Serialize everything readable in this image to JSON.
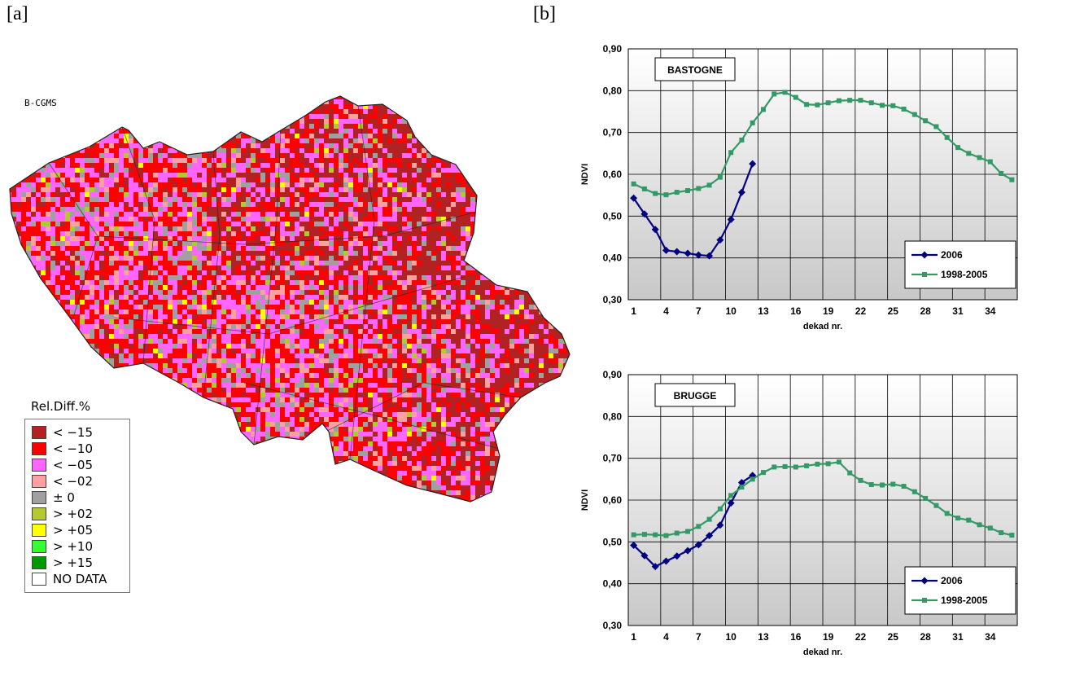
{
  "panel_a_label": "[a]",
  "panel_b_label": "[b]",
  "map": {
    "tag": "B-CGMS",
    "legend_title": "Rel.Diff.%",
    "legend": [
      {
        "label": "< −15",
        "color": "#b22222"
      },
      {
        "label": "< −10",
        "color": "#ff0000"
      },
      {
        "label": "< −05",
        "color": "#ff66ff"
      },
      {
        "label": "< −02",
        "color": "#ffa0a0"
      },
      {
        "label": "± 0",
        "color": "#a0a0a0"
      },
      {
        "label": "> +02",
        "color": "#b4c832"
      },
      {
        "label": "> +05",
        "color": "#ffff00"
      },
      {
        "label": "> +10",
        "color": "#33ff33"
      },
      {
        "label": "> +15",
        "color": "#009900"
      },
      {
        "label": "NO DATA",
        "color": "#ffffff"
      }
    ]
  },
  "chart_data": [
    {
      "type": "line",
      "title": "BASTOGNE",
      "xlabel": "dekad nr.",
      "ylabel": "NDVI",
      "ylim": [
        0.3,
        0.9
      ],
      "yticks": [
        "0,30",
        "0,40",
        "0,50",
        "0,60",
        "0,70",
        "0,80",
        "0,90"
      ],
      "xticks": [
        "1",
        "4",
        "7",
        "10",
        "13",
        "16",
        "19",
        "22",
        "25",
        "28",
        "31",
        "34"
      ],
      "xlim": [
        1,
        36
      ],
      "grid": true,
      "legend_position": "bottom-right",
      "series": [
        {
          "name": "2006",
          "color": "#000080",
          "marker": "diamond",
          "x": [
            1,
            2,
            3,
            4,
            5,
            6,
            7,
            8,
            9,
            10,
            11,
            12
          ],
          "y": [
            0.543,
            0.505,
            0.468,
            0.418,
            0.415,
            0.411,
            0.407,
            0.405,
            0.443,
            0.492,
            0.557,
            0.625
          ]
        },
        {
          "name": "1998-2005",
          "color": "#339966",
          "marker": "square",
          "x": [
            1,
            2,
            3,
            4,
            5,
            6,
            7,
            8,
            9,
            10,
            11,
            12,
            13,
            14,
            15,
            16,
            17,
            18,
            19,
            20,
            21,
            22,
            23,
            24,
            25,
            26,
            27,
            28,
            29,
            30,
            31,
            32,
            33,
            34,
            35,
            36
          ],
          "y": [
            0.577,
            0.565,
            0.554,
            0.551,
            0.557,
            0.561,
            0.566,
            0.574,
            0.593,
            0.652,
            0.682,
            0.723,
            0.755,
            0.792,
            0.796,
            0.784,
            0.767,
            0.766,
            0.771,
            0.776,
            0.777,
            0.777,
            0.771,
            0.765,
            0.764,
            0.756,
            0.743,
            0.728,
            0.714,
            0.688,
            0.664,
            0.65,
            0.64,
            0.63,
            0.602,
            0.587
          ]
        }
      ]
    },
    {
      "type": "line",
      "title": "BRUGGE",
      "xlabel": "dekad nr.",
      "ylabel": "NDVI",
      "ylim": [
        0.3,
        0.9
      ],
      "yticks": [
        "0,30",
        "0,40",
        "0,50",
        "0,60",
        "0,70",
        "0,80",
        "0,90"
      ],
      "xticks": [
        "1",
        "4",
        "7",
        "10",
        "13",
        "16",
        "19",
        "22",
        "25",
        "28",
        "31",
        "34"
      ],
      "xlim": [
        1,
        36
      ],
      "grid": true,
      "legend_position": "bottom-right",
      "series": [
        {
          "name": "2006",
          "color": "#000080",
          "marker": "diamond",
          "x": [
            1,
            2,
            3,
            4,
            5,
            6,
            7,
            8,
            9,
            10,
            11,
            12
          ],
          "y": [
            0.492,
            0.467,
            0.441,
            0.454,
            0.466,
            0.479,
            0.493,
            0.515,
            0.54,
            0.593,
            0.642,
            0.659
          ]
        },
        {
          "name": "1998-2005",
          "color": "#339966",
          "marker": "square",
          "x": [
            1,
            2,
            3,
            4,
            5,
            6,
            7,
            8,
            9,
            10,
            11,
            12,
            13,
            14,
            15,
            16,
            17,
            18,
            19,
            20,
            21,
            22,
            23,
            24,
            25,
            26,
            27,
            28,
            29,
            30,
            31,
            32,
            33,
            34,
            35,
            36
          ],
          "y": [
            0.517,
            0.518,
            0.517,
            0.515,
            0.521,
            0.525,
            0.537,
            0.554,
            0.579,
            0.611,
            0.631,
            0.65,
            0.666,
            0.679,
            0.68,
            0.679,
            0.682,
            0.686,
            0.687,
            0.691,
            0.665,
            0.647,
            0.637,
            0.636,
            0.638,
            0.633,
            0.62,
            0.604,
            0.587,
            0.568,
            0.557,
            0.552,
            0.541,
            0.533,
            0.522,
            0.516
          ]
        }
      ]
    }
  ]
}
